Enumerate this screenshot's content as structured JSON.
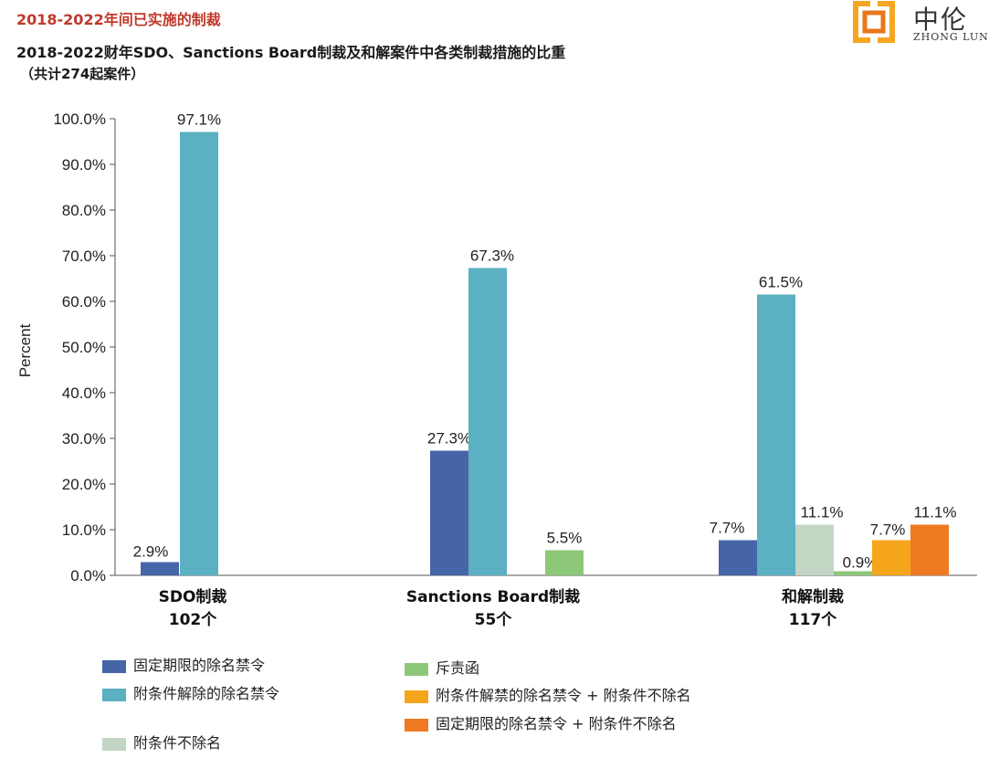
{
  "header": {
    "section_label": "2018-2022年间已实施的制裁",
    "title": "2018-2022财年SDO、Sanctions Board制裁及和解案件中各类制裁措施的比重",
    "subtitle": "（共计274起案件）"
  },
  "logo": {
    "cn": "中伦",
    "en": "ZHONG LUN",
    "colors": [
      "#f5a623",
      "#e8761a"
    ]
  },
  "chart_data": {
    "type": "bar",
    "ylabel": "Percent",
    "ylim": [
      0,
      100
    ],
    "yticks": [
      "0.0%",
      "10.0%",
      "20.0%",
      "30.0%",
      "40.0%",
      "50.0%",
      "60.0%",
      "70.0%",
      "80.0%",
      "90.0%",
      "100.0%"
    ],
    "groups": [
      {
        "name": "SDO制裁",
        "count": "102个"
      },
      {
        "name": "Sanctions Board制裁",
        "count": "55个"
      },
      {
        "name": "和解制裁",
        "count": "117个"
      }
    ],
    "series": [
      {
        "name": "固定期限的除名禁令",
        "color": "#4565a8",
        "values": [
          2.9,
          27.3,
          7.7
        ],
        "labels": [
          "2.9%",
          "27.3%",
          "7.7%"
        ]
      },
      {
        "name": "附条件解除的除名禁令",
        "color": "#5bb0c2",
        "values": [
          97.1,
          67.3,
          61.5
        ],
        "labels": [
          "97.1%",
          "67.3%",
          "61.5%"
        ]
      },
      {
        "name": "斥责函",
        "color": "#8dc878",
        "values": [
          null,
          5.5,
          null
        ],
        "labels": [
          null,
          "5.5%",
          null
        ]
      },
      {
        "name": "附条件不除名",
        "color": "#c3d6c4",
        "values": [
          null,
          null,
          11.1
        ],
        "labels": [
          null,
          null,
          "11.1%"
        ]
      },
      {
        "name": "附条件不除名_small",
        "color": "#8dc878",
        "values": [
          null,
          null,
          0.9
        ],
        "labels": [
          null,
          null,
          "0.9%"
        ]
      },
      {
        "name": "附条件解禁的除名禁令 + 附条件不除名",
        "color": "#f5a51c",
        "values": [
          null,
          null,
          7.7
        ],
        "labels": [
          null,
          null,
          "7.7%"
        ]
      },
      {
        "name": "固定期限的除名禁令 + 附条件不除名",
        "color": "#ef7a22",
        "values": [
          null,
          null,
          11.1
        ],
        "labels": [
          null,
          null,
          "11.1%"
        ]
      }
    ]
  },
  "legend": [
    {
      "label": "固定期限的除名禁令",
      "color": "#4565a8"
    },
    {
      "label": "附条件解除的除名禁令",
      "color": "#5bb0c2"
    },
    {
      "label": "附条件不除名",
      "color": "#c3d6c4"
    },
    {
      "label": "斥责函",
      "color": "#8dc878"
    },
    {
      "label": "附条件解禁的除名禁令 + 附条件不除名",
      "color": "#f5a51c"
    },
    {
      "label": "固定期限的除名禁令 + 附条件不除名",
      "color": "#ef7a22"
    }
  ]
}
